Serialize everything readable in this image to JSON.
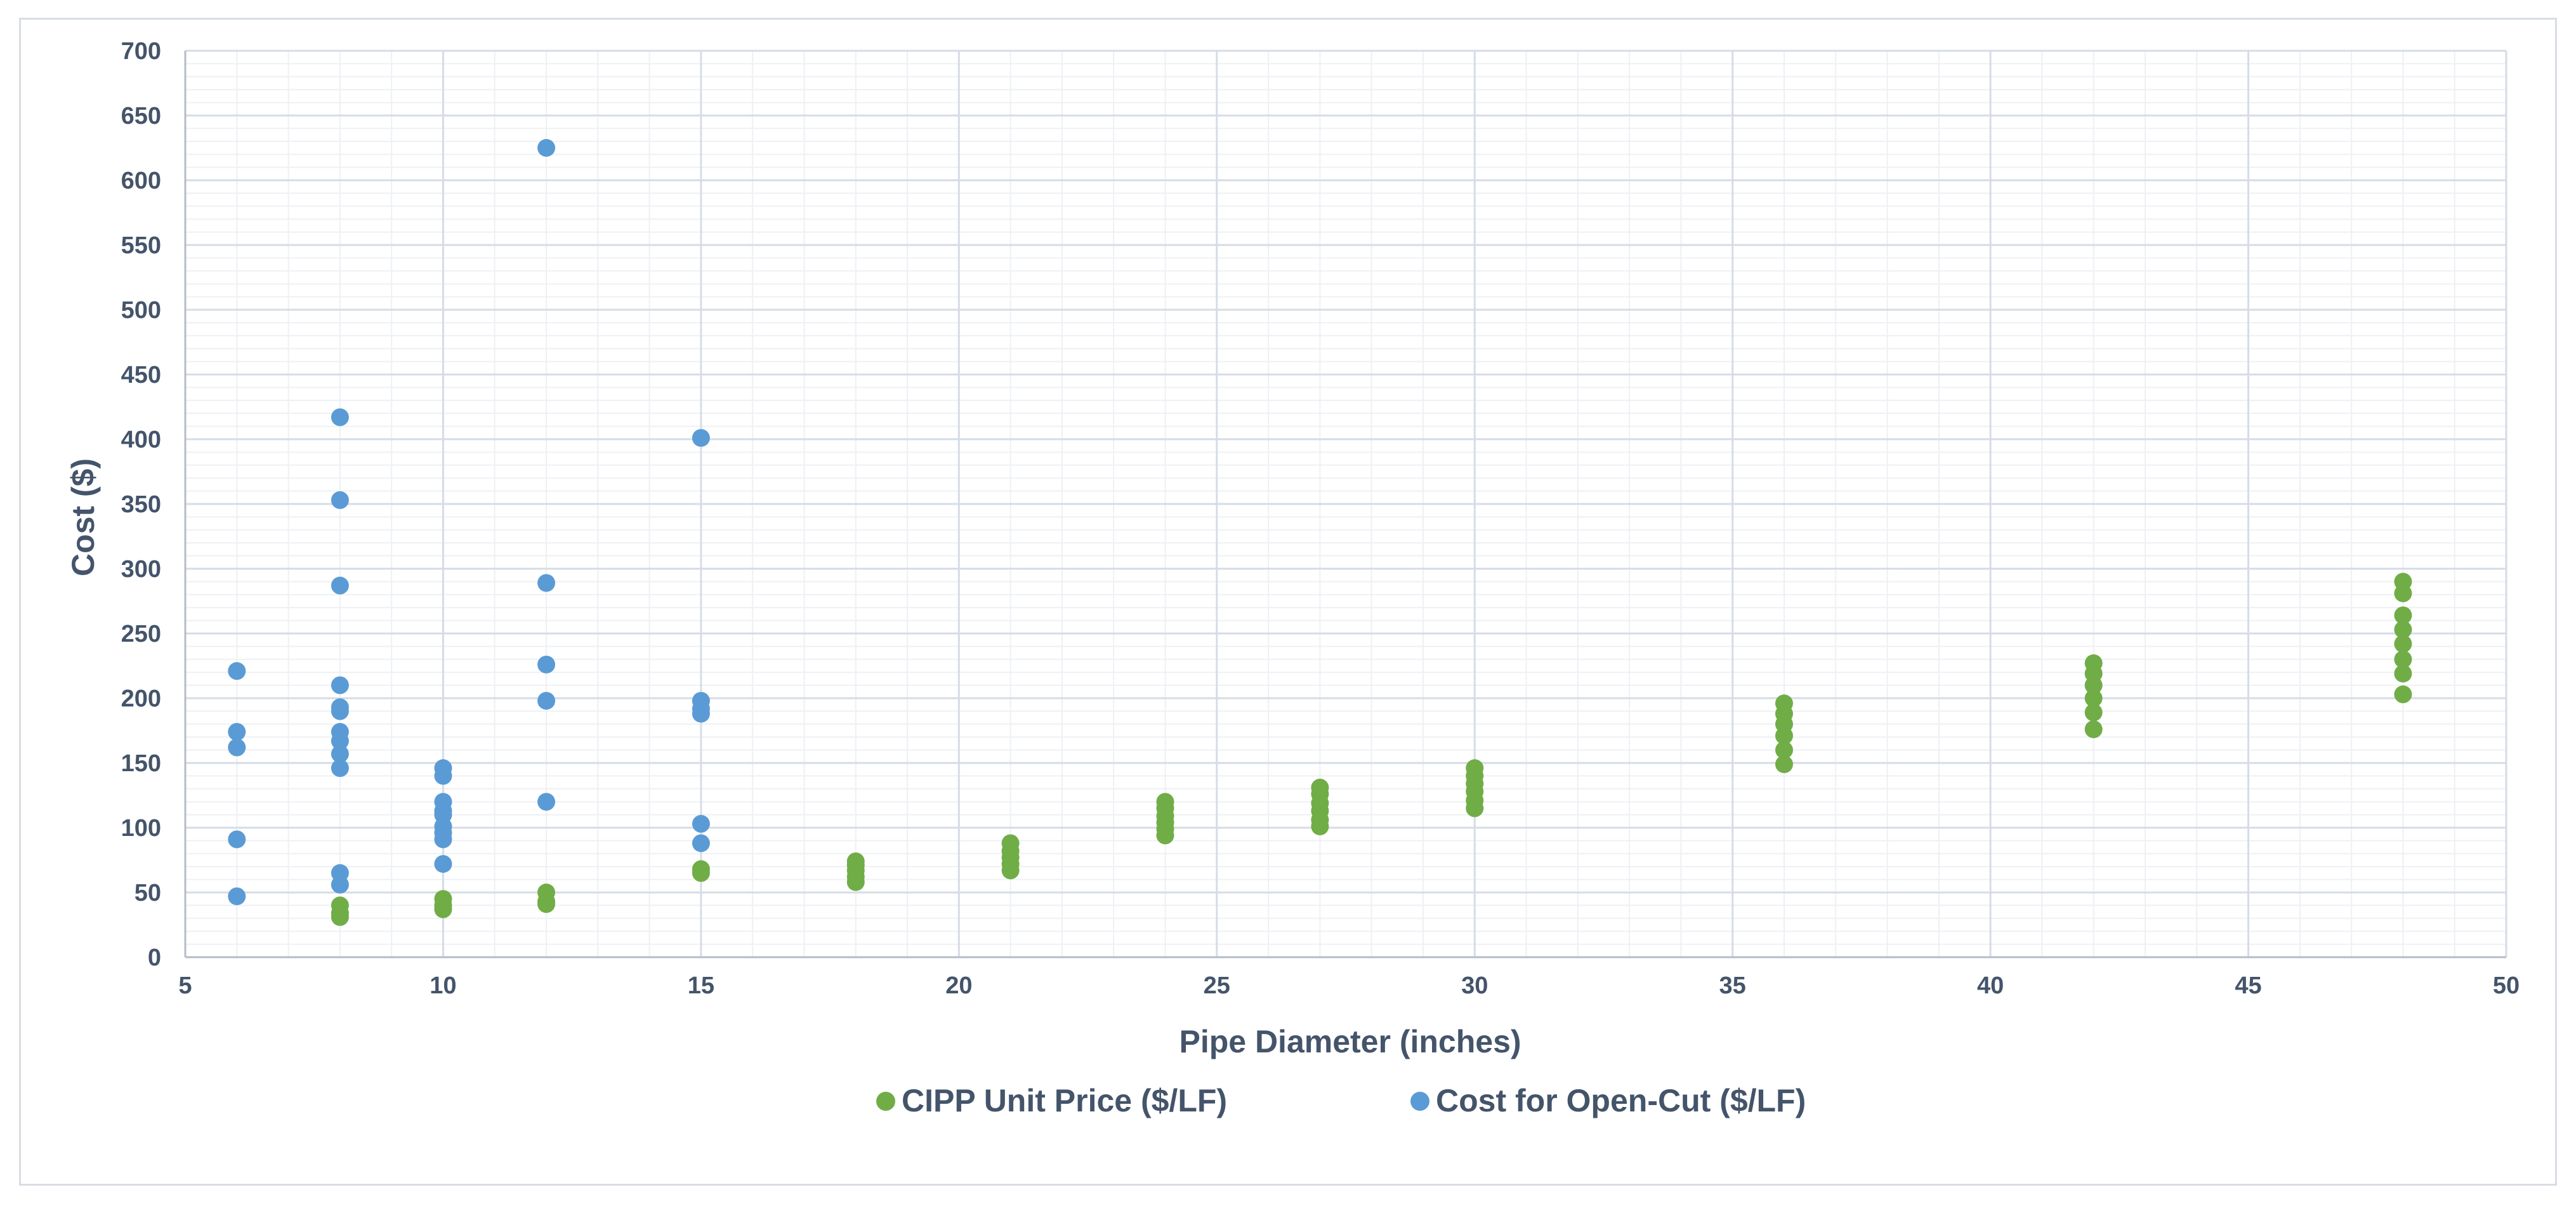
{
  "chart_data": {
    "type": "scatter",
    "title": "",
    "xlabel": "Pipe Diameter (inches)",
    "ylabel": "Cost ($)",
    "xlim": [
      5,
      50
    ],
    "ylim": [
      0,
      700
    ],
    "xticks": [
      5,
      10,
      15,
      20,
      25,
      30,
      35,
      40,
      45,
      50
    ],
    "yticks": [
      0,
      50,
      100,
      150,
      200,
      250,
      300,
      350,
      400,
      450,
      500,
      550,
      600,
      650,
      700
    ],
    "x_tick_labels": [
      "5",
      "10",
      "15",
      "20",
      "25",
      "30",
      "35",
      "40",
      "45",
      "50"
    ],
    "y_tick_labels": [
      "0",
      "50",
      "100",
      "150",
      "200",
      "250",
      "300",
      "350",
      "400",
      "450",
      "500",
      "550",
      "600",
      "650",
      "700"
    ],
    "grid": true,
    "legend_position": "bottom",
    "series": [
      {
        "name": "CIPP Unit Price ($/LF)",
        "color": "#70ad47",
        "points": [
          [
            8,
            31
          ],
          [
            8,
            34
          ],
          [
            8,
            40
          ],
          [
            10,
            37
          ],
          [
            10,
            40
          ],
          [
            10,
            45
          ],
          [
            12,
            41
          ],
          [
            12,
            43
          ],
          [
            12,
            50
          ],
          [
            15,
            65
          ],
          [
            15,
            68
          ],
          [
            18,
            58
          ],
          [
            18,
            62
          ],
          [
            18,
            67
          ],
          [
            18,
            71
          ],
          [
            18,
            74
          ],
          [
            21,
            67
          ],
          [
            21,
            72
          ],
          [
            21,
            77
          ],
          [
            21,
            82
          ],
          [
            21,
            88
          ],
          [
            24,
            94
          ],
          [
            24,
            99
          ],
          [
            24,
            104
          ],
          [
            24,
            109
          ],
          [
            24,
            115
          ],
          [
            24,
            120
          ],
          [
            27,
            101
          ],
          [
            27,
            106
          ],
          [
            27,
            113
          ],
          [
            27,
            119
          ],
          [
            27,
            126
          ],
          [
            27,
            131
          ],
          [
            30,
            115
          ],
          [
            30,
            121
          ],
          [
            30,
            128
          ],
          [
            30,
            134
          ],
          [
            30,
            140
          ],
          [
            30,
            146
          ],
          [
            36,
            149
          ],
          [
            36,
            160
          ],
          [
            36,
            171
          ],
          [
            36,
            180
          ],
          [
            36,
            188
          ],
          [
            36,
            196
          ],
          [
            42,
            176
          ],
          [
            42,
            189
          ],
          [
            42,
            200
          ],
          [
            42,
            210
          ],
          [
            42,
            219
          ],
          [
            42,
            227
          ],
          [
            48,
            203
          ],
          [
            48,
            219
          ],
          [
            48,
            230
          ],
          [
            48,
            242
          ],
          [
            48,
            253
          ],
          [
            48,
            264
          ],
          [
            48,
            281
          ],
          [
            48,
            290
          ]
        ]
      },
      {
        "name": "Cost for Open-Cut ($/LF)",
        "color": "#5b9bd5",
        "points": [
          [
            6,
            47
          ],
          [
            6,
            91
          ],
          [
            6,
            162
          ],
          [
            6,
            174
          ],
          [
            6,
            221
          ],
          [
            8,
            56
          ],
          [
            8,
            65
          ],
          [
            8,
            146
          ],
          [
            8,
            157
          ],
          [
            8,
            167
          ],
          [
            8,
            174
          ],
          [
            8,
            190
          ],
          [
            8,
            193
          ],
          [
            8,
            210
          ],
          [
            8,
            287
          ],
          [
            8,
            353
          ],
          [
            8,
            417
          ],
          [
            10,
            72
          ],
          [
            10,
            91
          ],
          [
            10,
            96
          ],
          [
            10,
            101
          ],
          [
            10,
            110
          ],
          [
            10,
            113
          ],
          [
            10,
            120
          ],
          [
            10,
            140
          ],
          [
            10,
            146
          ],
          [
            12,
            120
          ],
          [
            12,
            198
          ],
          [
            12,
            226
          ],
          [
            12,
            289
          ],
          [
            12,
            625
          ],
          [
            15,
            88
          ],
          [
            15,
            103
          ],
          [
            15,
            188
          ],
          [
            15,
            192
          ],
          [
            15,
            198
          ],
          [
            15,
            401
          ]
        ]
      }
    ]
  },
  "legend": {
    "items": [
      {
        "label": "CIPP Unit Price ($/LF)",
        "color": "#70ad47"
      },
      {
        "label": "Cost for Open-Cut ($/LF)",
        "color": "#5b9bd5"
      }
    ]
  }
}
